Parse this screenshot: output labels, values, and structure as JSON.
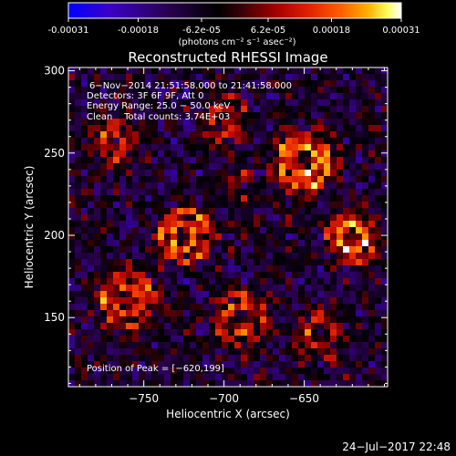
{
  "colorbar": {
    "tick_labels": [
      "-0.00031",
      "-0.00018",
      "-6.2e-05",
      "6.2e-05",
      "0.00018",
      "0.00031"
    ],
    "tick_values": [
      -0.00031,
      -0.00018,
      -6.2e-05,
      6.2e-05,
      0.00018,
      0.00031
    ],
    "range": [
      -0.00031,
      0.00031
    ],
    "unit_label": "(photons cm⁻² s⁻¹ asec⁻²)",
    "colors": [
      "#0000ff",
      "#3a00c8",
      "#2a0050",
      "#000000",
      "#3a0008",
      "#a00000",
      "#e02000",
      "#ff6000",
      "#ffb000",
      "#ffff60",
      "#ffffff"
    ]
  },
  "chart_data": {
    "type": "heatmap",
    "title": "Reconstructed RHESSI Image",
    "xlabel": "Heliocentric X (arcsec)",
    "ylabel": "Heliocentric Y (arcsec)",
    "xlim": [
      -797,
      -598
    ],
    "ylim": [
      108,
      302
    ],
    "x_ticks": [
      -750,
      -700,
      -650
    ],
    "x_tick_labels": [
      "−750",
      "−700",
      "−650"
    ],
    "y_ticks": [
      150,
      200,
      250,
      300
    ],
    "y_tick_labels": [
      "150",
      "200",
      "250",
      "300"
    ],
    "annotations": {
      "time": "6−Nov−2014 21:51:58.000 to 21:41:58.000",
      "detectors": "Detectors: 3F 6F 9F, Att 0",
      "energy": "Energy Range: 25.0 − 50.0 keV",
      "clean": "Clean    Total counts: 3.74E+03",
      "peak": "Position of Peak = [−620,199]"
    },
    "peak_position": [
      -620,
      199
    ],
    "grid": false,
    "legend": "none"
  },
  "footer": {
    "timestamp": "24−Jul−2017 22:48"
  },
  "icons": {}
}
